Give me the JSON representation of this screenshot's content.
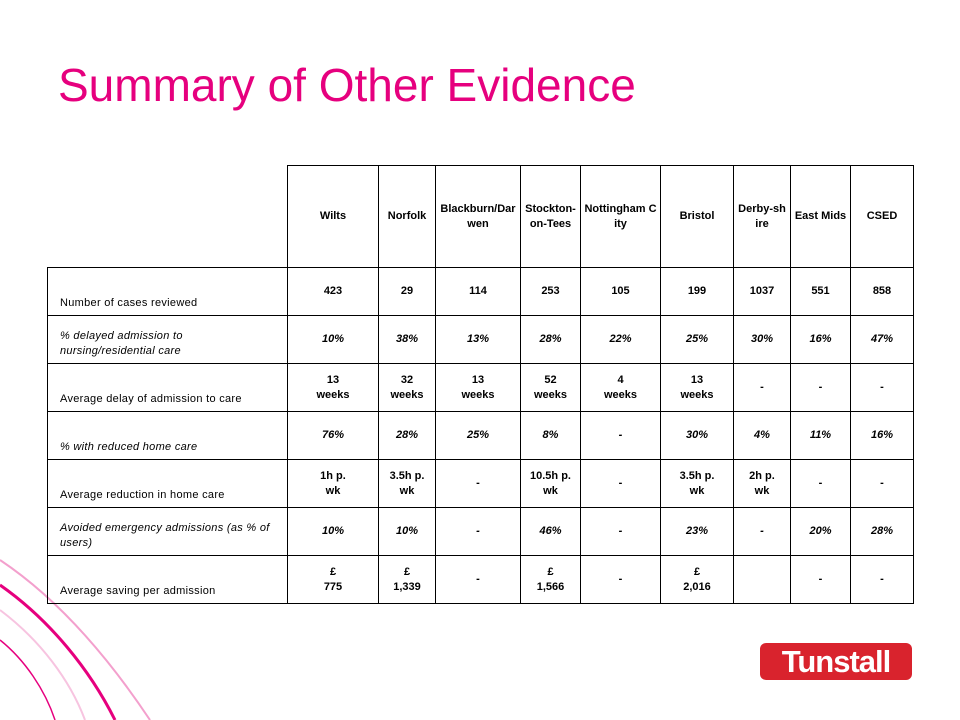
{
  "header": {
    "title": "Summary of Other Evidence"
  },
  "table": {
    "columns": [
      "Wilts",
      "Norfolk",
      "Blackburn/Darwen",
      "Stockton-on-Tees",
      "Nottingham City",
      "Bristol",
      "Derby-shire",
      "East Mids",
      "CSED"
    ],
    "rows": [
      {
        "label": "Number of cases reviewed",
        "cells": [
          "423",
          "29",
          "114",
          "253",
          "105",
          "199",
          "1037",
          "551",
          "858"
        ]
      },
      {
        "label": "% delayed admission to nursing/residential care",
        "cells": [
          "10%",
          "38%",
          "13%",
          "28%",
          "22%",
          "25%",
          "30%",
          "16%",
          "47%"
        ]
      },
      {
        "label": "Average delay of admission to care",
        "cells": [
          "13\nweeks",
          "32\nweeks",
          "13\nweeks",
          "52\nweeks",
          "4\nweeks",
          "13\nweeks",
          "-",
          "-",
          "-"
        ]
      },
      {
        "label": "% with reduced home care",
        "cells": [
          "76%",
          "28%",
          "25%",
          "8%",
          "-",
          "30%",
          "4%",
          "11%",
          "16%"
        ]
      },
      {
        "label": "Average reduction in home care",
        "cells": [
          "1h p.\nwk",
          "3.5h p.\nwk",
          "-",
          "10.5h p.\nwk",
          "-",
          "3.5h p.\nwk",
          "2h p.\nwk",
          "-",
          "-"
        ]
      },
      {
        "label": "Avoided emergency admissions (as % of users)",
        "cells": [
          "10%",
          "10%",
          "-",
          "46%",
          "-",
          "23%",
          "-",
          "20%",
          "28%"
        ]
      },
      {
        "label": "Average saving per admission",
        "cells": [
          "£\n775",
          "£\n1,339",
          "-",
          "£\n1,566",
          "-",
          "£\n2,016",
          null,
          "-",
          "-"
        ]
      }
    ]
  },
  "logo": {
    "text": "Tunstall"
  }
}
